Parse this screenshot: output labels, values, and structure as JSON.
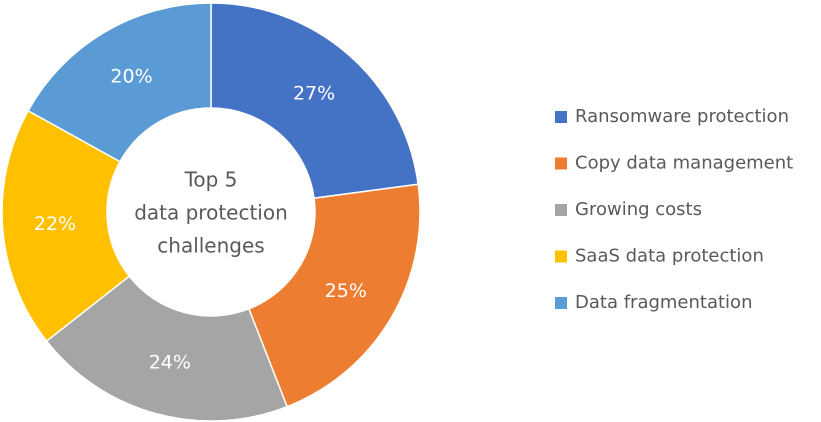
{
  "chart_data": {
    "type": "donut",
    "title": [
      "Top 5",
      "data protection",
      "challenges"
    ],
    "categories": [
      "Ransomware protection",
      "Copy data management",
      "Growing costs",
      "SaaS data protection",
      "Data fragmentation"
    ],
    "values": [
      27,
      25,
      24,
      22,
      20
    ],
    "value_labels": [
      "27%",
      "25%",
      "24%",
      "22%",
      "20%"
    ],
    "colors": [
      "#4472c4",
      "#ed7d31",
      "#a5a5a5",
      "#ffc000",
      "#5b9bd5"
    ],
    "legend": "right"
  }
}
